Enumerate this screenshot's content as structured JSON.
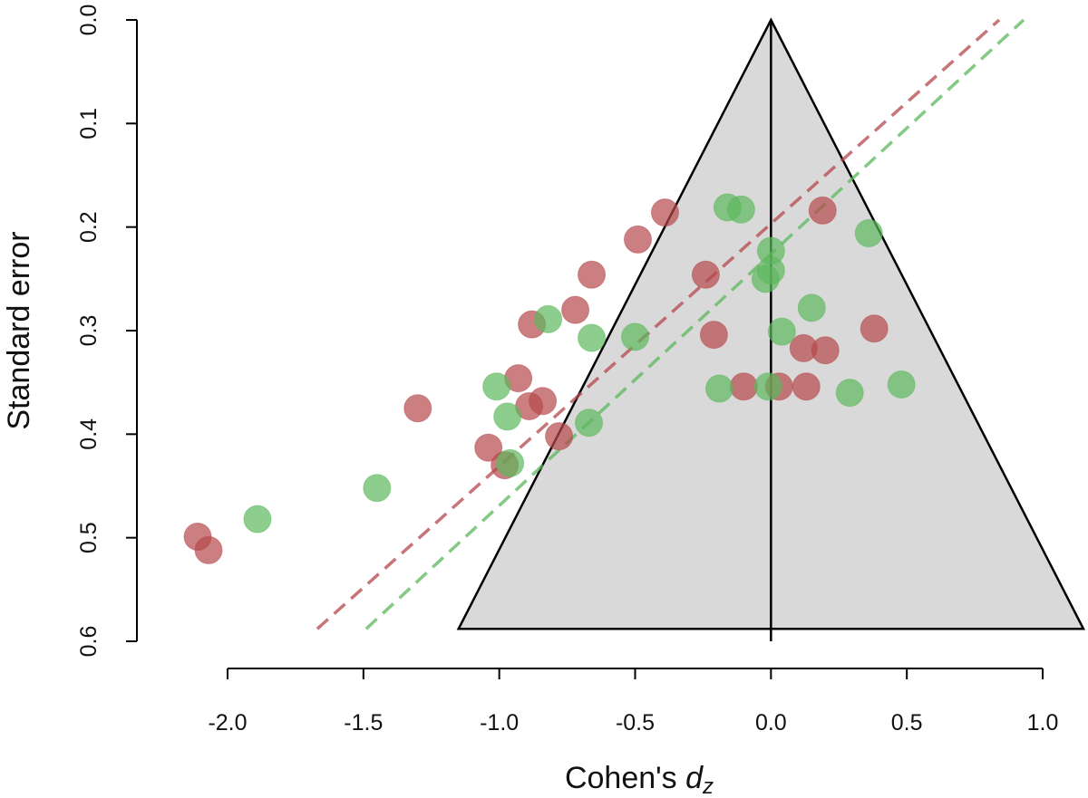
{
  "chart_data": {
    "type": "scatter",
    "subtype": "funnel-plot",
    "xlabel": "Cohen's ",
    "xlabel_italic": "d",
    "xlabel_subscript": "z",
    "ylabel": "Standard error",
    "xlim": [
      -2.0,
      1.0
    ],
    "ylim": [
      0.0,
      0.6
    ],
    "y_reversed": true,
    "x_ticks": [
      -2.0,
      -1.5,
      -1.0,
      -0.5,
      0.0,
      0.5,
      1.0
    ],
    "x_tick_labels": [
      "-2.0",
      "-1.5",
      "-1.0",
      "-0.5",
      "0.0",
      "0.5",
      "1.0"
    ],
    "y_ticks": [
      0.0,
      0.1,
      0.2,
      0.3,
      0.4,
      0.5,
      0.6
    ],
    "y_tick_labels": [
      "0.0",
      "0.1",
      "0.2",
      "0.3",
      "0.4",
      "0.5",
      "0.6"
    ],
    "funnel": {
      "apex": [
        0.0,
        0.0
      ],
      "base_se": 0.588,
      "base_left_x": -1.15,
      "base_right_x": 1.15,
      "fill": "#d9d9d9",
      "stroke": "#000000"
    },
    "center_line_x": 0.0,
    "series": [
      {
        "name": "red",
        "color": "#b5484c",
        "points": [
          [
            -0.39,
            0.186
          ],
          [
            -0.49,
            0.212
          ],
          [
            -0.66,
            0.246
          ],
          [
            -0.24,
            0.246
          ],
          [
            -0.72,
            0.28
          ],
          [
            -0.88,
            0.294
          ],
          [
            -0.21,
            0.304
          ],
          [
            0.19,
            0.184
          ],
          [
            0.12,
            0.317
          ],
          [
            0.2,
            0.319
          ],
          [
            0.38,
            0.298
          ],
          [
            -0.93,
            0.346
          ],
          [
            -0.89,
            0.373
          ],
          [
            -0.84,
            0.368
          ],
          [
            -1.3,
            0.375
          ],
          [
            -0.1,
            0.354
          ],
          [
            0.03,
            0.354
          ],
          [
            0.13,
            0.354
          ],
          [
            -0.78,
            0.402
          ],
          [
            -1.04,
            0.413
          ],
          [
            -0.98,
            0.43
          ],
          [
            -2.11,
            0.499
          ],
          [
            -2.07,
            0.512
          ]
        ],
        "trend_line": {
          "x1": -1.67,
          "y1": 0.588,
          "x2": 0.84,
          "y2": 0.0
        }
      },
      {
        "name": "green",
        "color": "#5cb85c",
        "points": [
          [
            -0.16,
            0.181
          ],
          [
            -0.11,
            0.183
          ],
          [
            0.36,
            0.206
          ],
          [
            0.0,
            0.223
          ],
          [
            0.0,
            0.242
          ],
          [
            -0.02,
            0.25
          ],
          [
            0.15,
            0.278
          ],
          [
            -0.82,
            0.289
          ],
          [
            -0.66,
            0.307
          ],
          [
            -0.5,
            0.306
          ],
          [
            0.04,
            0.301
          ],
          [
            -1.01,
            0.354
          ],
          [
            -0.19,
            0.356
          ],
          [
            -0.01,
            0.354
          ],
          [
            0.29,
            0.36
          ],
          [
            0.48,
            0.352
          ],
          [
            -0.97,
            0.383
          ],
          [
            -0.67,
            0.389
          ],
          [
            -0.96,
            0.428
          ],
          [
            -1.45,
            0.452
          ],
          [
            -1.89,
            0.482
          ]
        ],
        "trend_line": {
          "x1": -1.49,
          "y1": 0.588,
          "x2": 0.93,
          "y2": 0.0
        }
      }
    ]
  }
}
